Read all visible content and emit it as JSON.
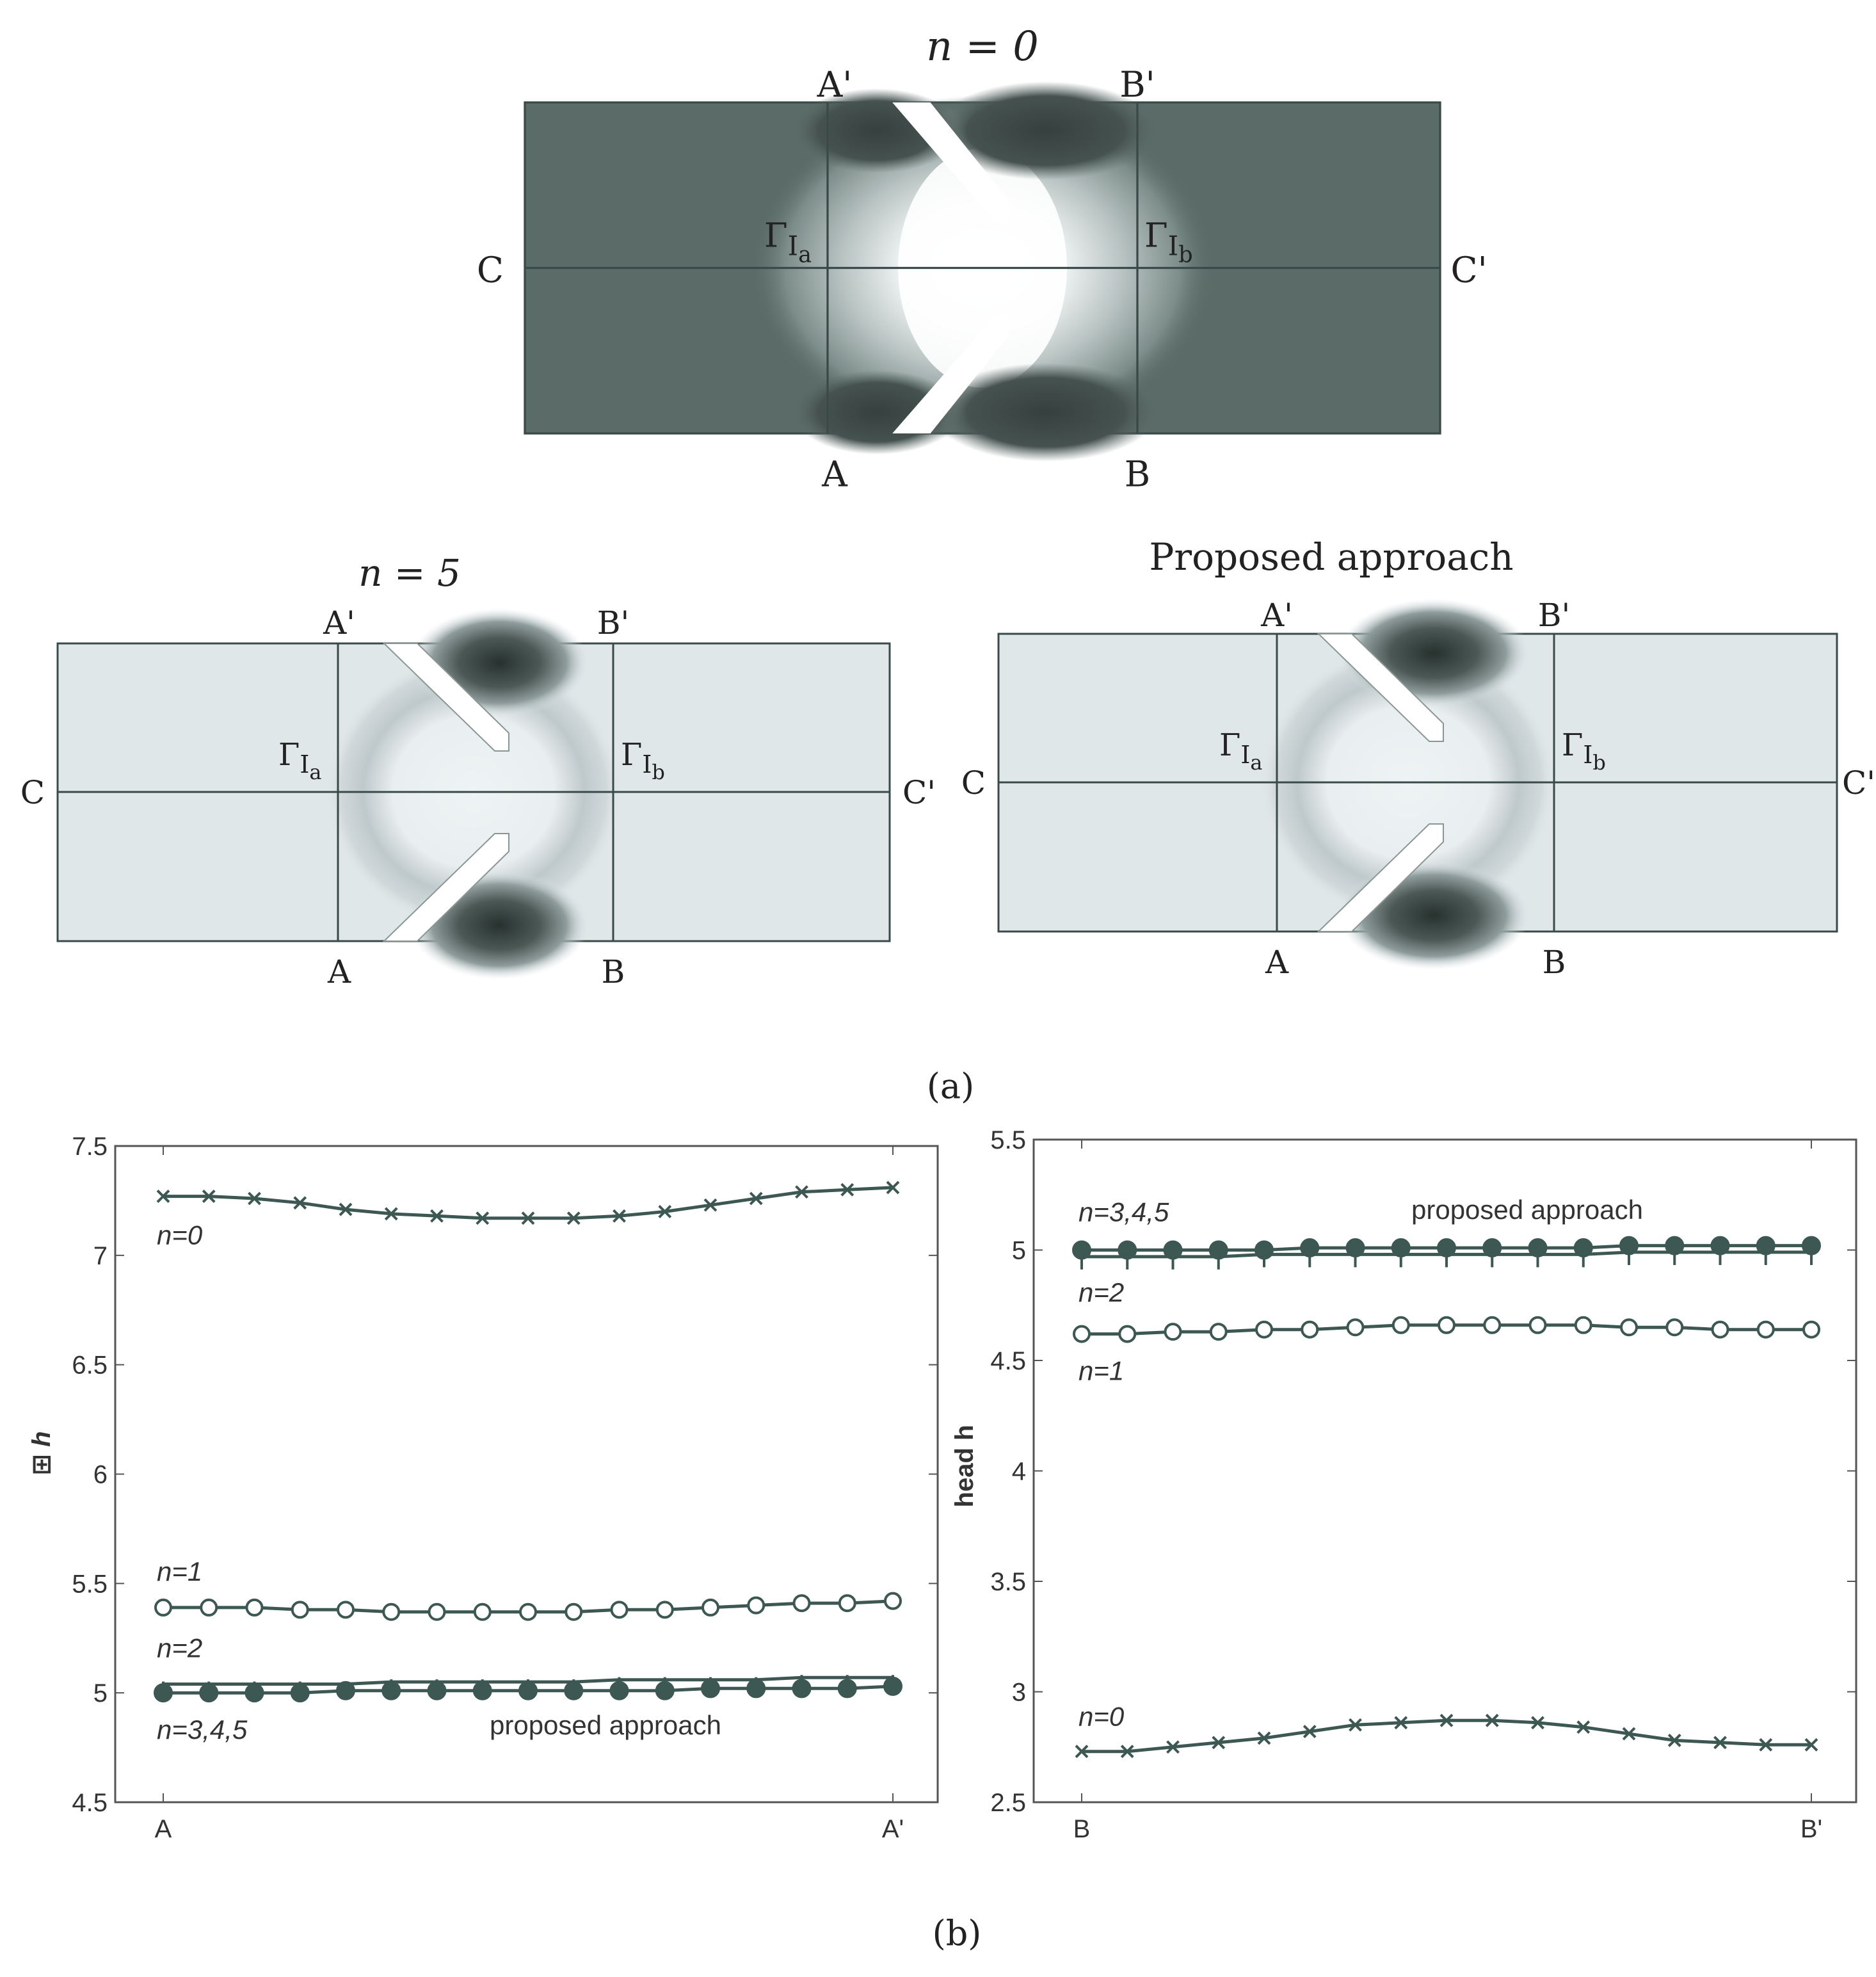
{
  "colors": {
    "panel_dark": "#5b6b68",
    "panel_light": "#dfe7e9",
    "contour_white": "#ffffff",
    "line": "#3a4a48",
    "curve": "#3d5752",
    "frame": "#555555"
  },
  "figure_a": {
    "panels": [
      {
        "title": "n = 0",
        "scheme": "dark",
        "labels": {
          "top_left": "A'",
          "top_right": "B'",
          "bottom_left": "A",
          "bottom_right": "B",
          "left": "C",
          "right": "C'",
          "gamma_a": "Γ",
          "gamma_a_sub": "I",
          "gamma_a_subsub": "a",
          "gamma_b": "Γ",
          "gamma_b_sub": "I",
          "gamma_b_subsub": "b"
        }
      },
      {
        "title": "n = 5",
        "scheme": "light",
        "labels": {
          "top_left": "A'",
          "top_right": "B'",
          "bottom_left": "A",
          "bottom_right": "B",
          "left": "C",
          "right": "C'",
          "gamma_a": "Γ",
          "gamma_a_sub": "I",
          "gamma_a_subsub": "a",
          "gamma_b": "Γ",
          "gamma_b_sub": "I",
          "gamma_b_subsub": "b"
        }
      },
      {
        "title": "Proposed approach",
        "scheme": "light",
        "labels": {
          "top_left": "A'",
          "top_right": "B'",
          "bottom_left": "A",
          "bottom_right": "B",
          "left": "C",
          "right": "C'",
          "gamma_a": "Γ",
          "gamma_a_sub": "I",
          "gamma_a_subsub": "a",
          "gamma_b": "Γ",
          "gamma_b_sub": "I",
          "gamma_b_subsub": "b"
        }
      }
    ],
    "caption": "(a)"
  },
  "figure_b_caption": "(b)",
  "chart_data": [
    {
      "type": "line",
      "title": "",
      "xlabel": "",
      "ylabel": "h",
      "ylabel_marker": "⊞",
      "ylim": [
        4.5,
        7.5
      ],
      "yticks": [
        4.5,
        5,
        5.5,
        6,
        6.5,
        7,
        7.5
      ],
      "ytick_labels": [
        "4.5",
        "5",
        "5.5",
        "6",
        "6.5",
        "7",
        "7.5"
      ],
      "xtick_labels": [
        "A",
        "A'"
      ],
      "n_points": 17,
      "series": [
        {
          "name": "n=0",
          "marker": "x",
          "values": [
            7.27,
            7.27,
            7.26,
            7.24,
            7.21,
            7.19,
            7.18,
            7.17,
            7.17,
            7.17,
            7.18,
            7.2,
            7.23,
            7.26,
            7.29,
            7.3,
            7.31
          ]
        },
        {
          "name": "n=1",
          "marker": "o",
          "values": [
            5.39,
            5.39,
            5.39,
            5.38,
            5.38,
            5.37,
            5.37,
            5.37,
            5.37,
            5.37,
            5.38,
            5.38,
            5.39,
            5.4,
            5.41,
            5.41,
            5.42
          ]
        },
        {
          "name": "n=2",
          "marker": "+",
          "values": [
            5.04,
            5.04,
            5.04,
            5.04,
            5.04,
            5.05,
            5.05,
            5.05,
            5.05,
            5.05,
            5.06,
            5.06,
            5.06,
            5.06,
            5.07,
            5.07,
            5.07
          ]
        },
        {
          "name": "n=3,4,5",
          "marker": "filled",
          "values": [
            5.0,
            5.0,
            5.0,
            5.0,
            5.01,
            5.01,
            5.01,
            5.01,
            5.01,
            5.01,
            5.01,
            5.01,
            5.02,
            5.02,
            5.02,
            5.02,
            5.03
          ]
        }
      ],
      "annotations": [
        {
          "text": "n=0",
          "series": "n=0"
        },
        {
          "text": "n=1",
          "series": "n=1"
        },
        {
          "text": "n=2",
          "series": "n=2"
        },
        {
          "text": "n=3,4,5",
          "series": "n=3,4,5"
        },
        {
          "text": "proposed approach",
          "series": "n=3,4,5"
        }
      ]
    },
    {
      "type": "line",
      "title": "",
      "xlabel": "",
      "ylabel": "head h",
      "ylim": [
        2.5,
        5.5
      ],
      "yticks": [
        2.5,
        3,
        3.5,
        4,
        4.5,
        5,
        5.5
      ],
      "ytick_labels": [
        "2.5",
        "3",
        "3.5",
        "4",
        "4.5",
        "5",
        "5.5"
      ],
      "xtick_labels": [
        "B",
        "B'"
      ],
      "n_points": 17,
      "series": [
        {
          "name": "n=3,4,5",
          "marker": "filled",
          "values": [
            5.0,
            5.0,
            5.0,
            5.0,
            5.0,
            5.01,
            5.01,
            5.01,
            5.01,
            5.01,
            5.01,
            5.01,
            5.02,
            5.02,
            5.02,
            5.02,
            5.02
          ]
        },
        {
          "name": "n=2",
          "marker": "+",
          "values": [
            4.97,
            4.97,
            4.97,
            4.97,
            4.98,
            4.98,
            4.98,
            4.98,
            4.98,
            4.98,
            4.98,
            4.98,
            4.99,
            4.99,
            4.99,
            4.99,
            4.99
          ]
        },
        {
          "name": "n=1",
          "marker": "o",
          "values": [
            4.62,
            4.62,
            4.63,
            4.63,
            4.64,
            4.64,
            4.65,
            4.66,
            4.66,
            4.66,
            4.66,
            4.66,
            4.65,
            4.65,
            4.64,
            4.64,
            4.64
          ]
        },
        {
          "name": "n=0",
          "marker": "x",
          "values": [
            2.73,
            2.73,
            2.75,
            2.77,
            2.79,
            2.82,
            2.85,
            2.86,
            2.87,
            2.87,
            2.86,
            2.84,
            2.81,
            2.78,
            2.77,
            2.76,
            2.76
          ]
        }
      ],
      "annotations": [
        {
          "text": "n=3,4,5",
          "series": "n=3,4,5"
        },
        {
          "text": "proposed approach",
          "series": "n=3,4,5"
        },
        {
          "text": "n=2",
          "series": "n=2"
        },
        {
          "text": "n=1",
          "series": "n=1"
        },
        {
          "text": "n=0",
          "series": "n=0"
        }
      ]
    }
  ]
}
